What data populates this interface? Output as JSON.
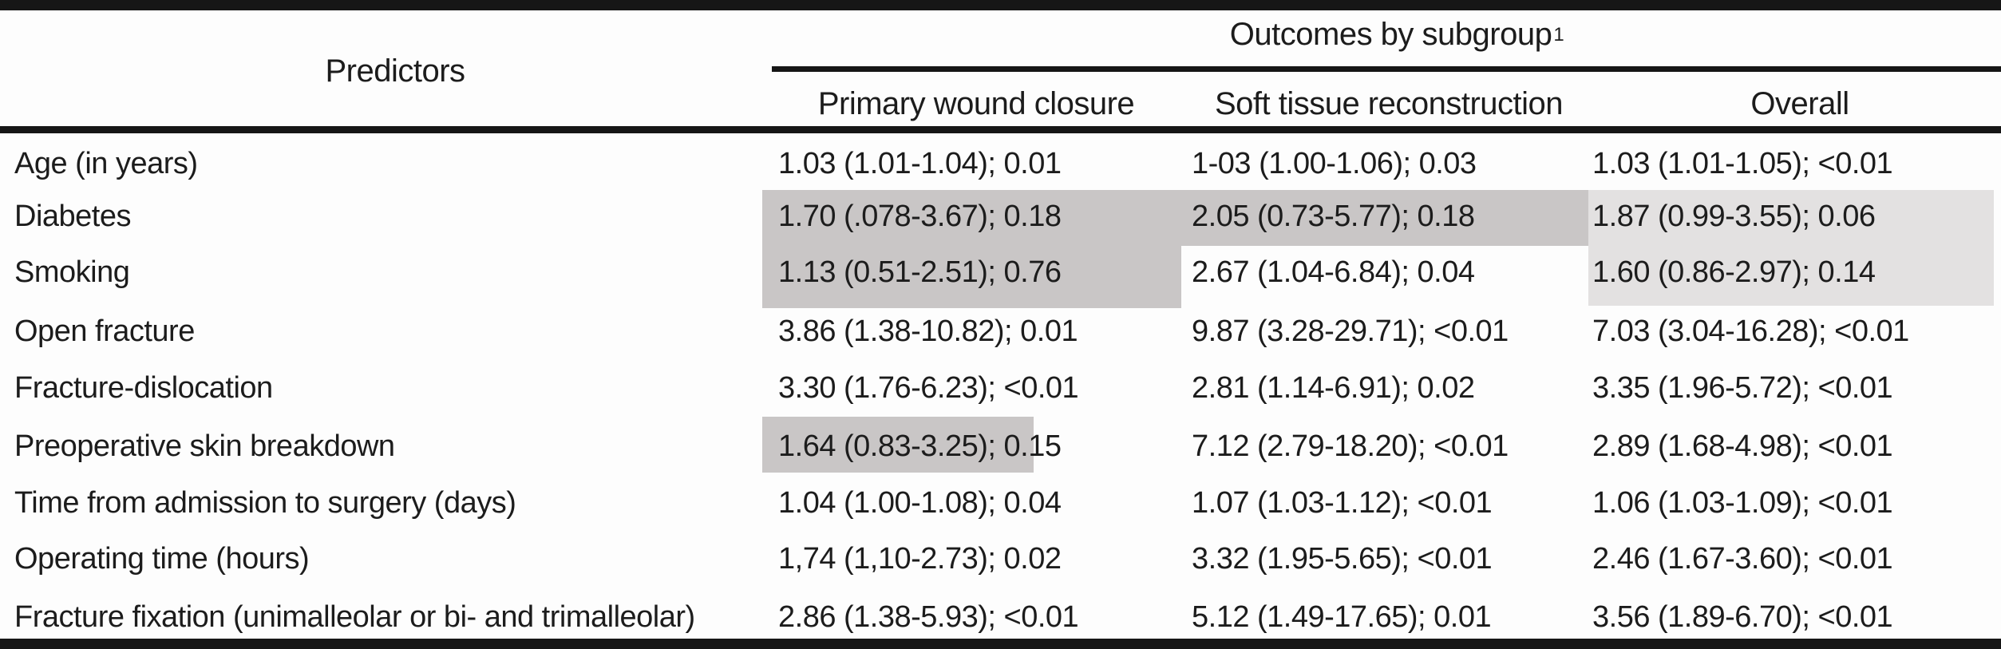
{
  "table": {
    "predictors_header": "Predictors",
    "group_header": "Outcomes by subgroup",
    "group_header_footnote_marker": "1",
    "columns": {
      "primary": "Primary wound closure",
      "soft": "Soft tissue reconstruction",
      "overall": "Overall"
    },
    "rows": [
      {
        "predictor": "Age (in years)",
        "primary": "1.03 (1.01-1.04); 0.01",
        "soft": "1-03 (1.00-1.06); 0.03",
        "overall": "1.03 (1.01-1.05); <0.01"
      },
      {
        "predictor": "Diabetes",
        "primary": "1.70 (.078-3.67); 0.18",
        "soft": "2.05 (0.73-5.77); 0.18",
        "overall": "1.87 (0.99-3.55); 0.06"
      },
      {
        "predictor": "Smoking",
        "primary": "1.13 (0.51-2.51); 0.76",
        "soft": "2.67 (1.04-6.84); 0.04",
        "overall": "1.60 (0.86-2.97); 0.14"
      },
      {
        "predictor": "Open fracture",
        "primary": "3.86 (1.38-10.82); 0.01",
        "soft": "9.87 (3.28-29.71); <0.01",
        "overall": "7.03 (3.04-16.28); <0.01"
      },
      {
        "predictor": "Fracture-dislocation",
        "primary": "3.30 (1.76-6.23); <0.01",
        "soft": "2.81 (1.14-6.91); 0.02",
        "overall": "3.35 (1.96-5.72); <0.01"
      },
      {
        "predictor": "Preoperative skin breakdown",
        "primary": "1.64 (0.83-3.25); 0.15",
        "soft": "7.12 (2.79-18.20); <0.01",
        "overall": "2.89 (1.68-4.98); <0.01"
      },
      {
        "predictor": "Time from admission to surgery (days)",
        "primary": "1.04 (1.00-1.08); 0.04",
        "soft": "1.07 (1.03-1.12); <0.01",
        "overall": "1.06 (1.03-1.09); <0.01"
      },
      {
        "predictor": "Operating time (hours)",
        "primary": "1,74 (1,10-2.73); 0.02",
        "soft": "3.32 (1.95-5.65); <0.01",
        "overall": "2.46 (1.67-3.60); <0.01"
      },
      {
        "predictor": "Fracture fixation (unimalleolar or bi- and trimalleolar)",
        "primary": "2.86 (1.38-5.93); <0.01",
        "soft": "5.12 (1.49-17.65); 0.01",
        "overall": "3.56 (1.89-6.70); <0.01"
      }
    ],
    "highlight_colors": {
      "dark": "#c9c6c6",
      "light": "#e3e1e1"
    },
    "rule_color": "#161616"
  }
}
